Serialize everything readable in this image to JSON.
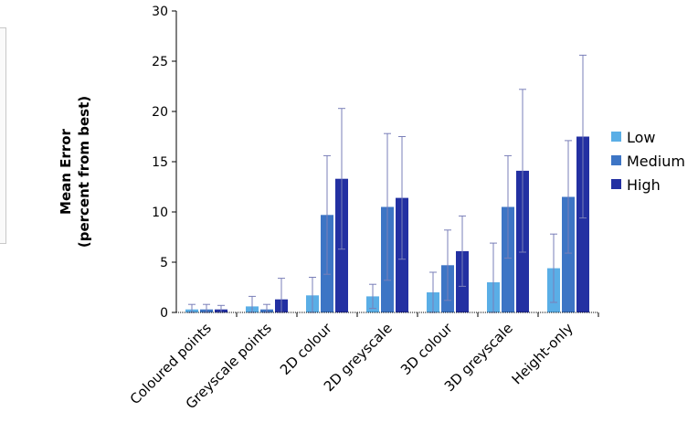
{
  "chart_data": {
    "type": "bar",
    "title": "",
    "ylabel": [
      "Mean Error",
      "(percent from best)"
    ],
    "xlabel": "",
    "ylim": [
      0,
      30
    ],
    "yticks": [
      0,
      5,
      10,
      15,
      20,
      25,
      30
    ],
    "grid": false,
    "legend_position": "right",
    "categories": [
      "Coloured points",
      "Greyscale points",
      "2D colour",
      "2D greyscale",
      "3D colour",
      "3D greyscale",
      "Height-only"
    ],
    "series": [
      {
        "name": "Low",
        "color": "#5aaee6",
        "values": [
          0.3,
          0.6,
          1.7,
          1.6,
          2.0,
          3.0,
          4.4
        ],
        "errors": [
          0.5,
          1.0,
          1.8,
          1.2,
          2.0,
          3.9,
          3.4
        ]
      },
      {
        "name": "Medium",
        "color": "#3d75c5",
        "values": [
          0.3,
          0.3,
          9.7,
          10.5,
          4.7,
          10.5,
          11.5
        ],
        "errors": [
          0.5,
          0.5,
          5.9,
          7.3,
          3.5,
          5.1,
          5.6
        ]
      },
      {
        "name": "High",
        "color": "#2330a2",
        "values": [
          0.3,
          1.3,
          13.3,
          11.4,
          6.1,
          14.1,
          17.5
        ],
        "errors": [
          0.4,
          2.1,
          7.0,
          6.1,
          3.5,
          8.1,
          8.1
        ]
      }
    ]
  }
}
